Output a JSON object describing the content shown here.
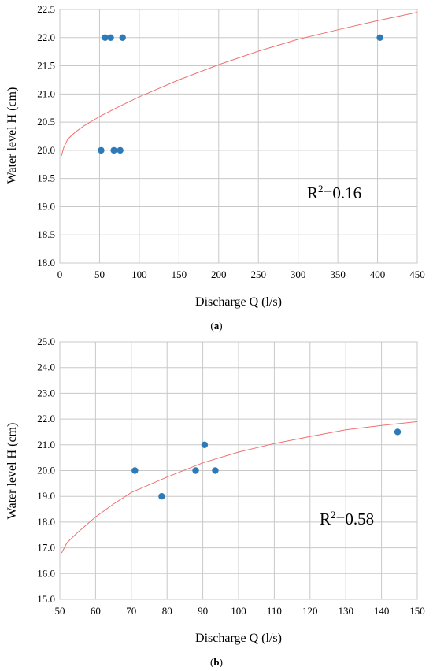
{
  "chart_data": [
    {
      "type": "scatter",
      "panel_label": "(a)",
      "xlabel": "Discharge Q (l/s)",
      "ylabel": "Water level H (cm)",
      "xlim": [
        0,
        450
      ],
      "ylim": [
        18.0,
        22.5
      ],
      "xticks": [
        0,
        50,
        100,
        150,
        200,
        250,
        300,
        350,
        400,
        450
      ],
      "yticks": [
        "18.0",
        "18.5",
        "19.0",
        "19.5",
        "20.0",
        "20.5",
        "21.0",
        "21.5",
        "22.0",
        "22.5"
      ],
      "grid": true,
      "points_color": "#2e7ab8",
      "fit_color": "#f07070",
      "annotation": {
        "base": "R",
        "sup": "2",
        "rest": "=0.16"
      },
      "points": [
        {
          "x": 57,
          "y": 22.0
        },
        {
          "x": 64,
          "y": 22.0
        },
        {
          "x": 79,
          "y": 22.0
        },
        {
          "x": 403,
          "y": 22.0
        },
        {
          "x": 52,
          "y": 20.0
        },
        {
          "x": 68,
          "y": 20.0
        },
        {
          "x": 76,
          "y": 20.0
        }
      ],
      "fit": {
        "x": [
          2,
          5,
          10,
          20,
          30,
          50,
          75,
          100,
          150,
          200,
          250,
          300,
          350,
          400,
          450
        ],
        "y": [
          19.9,
          20.05,
          20.2,
          20.33,
          20.43,
          20.6,
          20.78,
          20.95,
          21.25,
          21.52,
          21.76,
          21.97,
          22.14,
          22.3,
          22.45
        ]
      }
    },
    {
      "type": "scatter",
      "panel_label": "(b)",
      "xlabel": "Discharge Q (l/s)",
      "ylabel": "Water level H (cm)",
      "xlim": [
        50,
        150
      ],
      "ylim": [
        15.0,
        25.0
      ],
      "xticks": [
        50,
        60,
        70,
        80,
        90,
        100,
        110,
        120,
        130,
        140,
        150
      ],
      "yticks": [
        "15.0",
        "16.0",
        "17.0",
        "18.0",
        "19.0",
        "20.0",
        "21.0",
        "22.0",
        "23.0",
        "24.0",
        "25.0"
      ],
      "grid": true,
      "points_color": "#2e7ab8",
      "fit_color": "#f07070",
      "annotation": {
        "base": "R",
        "sup": "2",
        "rest": "=0.58"
      },
      "points": [
        {
          "x": 71,
          "y": 20.0
        },
        {
          "x": 78.5,
          "y": 19.0
        },
        {
          "x": 88,
          "y": 20.0
        },
        {
          "x": 90.5,
          "y": 21.0
        },
        {
          "x": 93.5,
          "y": 20.0
        },
        {
          "x": 144.5,
          "y": 21.5
        }
      ],
      "fit": {
        "x": [
          50.5,
          52,
          55,
          60,
          65,
          70,
          80,
          90,
          100,
          110,
          120,
          130,
          140,
          150
        ],
        "y": [
          16.8,
          17.2,
          17.6,
          18.2,
          18.7,
          19.15,
          19.75,
          20.3,
          20.72,
          21.05,
          21.32,
          21.58,
          21.75,
          21.9
        ]
      }
    }
  ]
}
